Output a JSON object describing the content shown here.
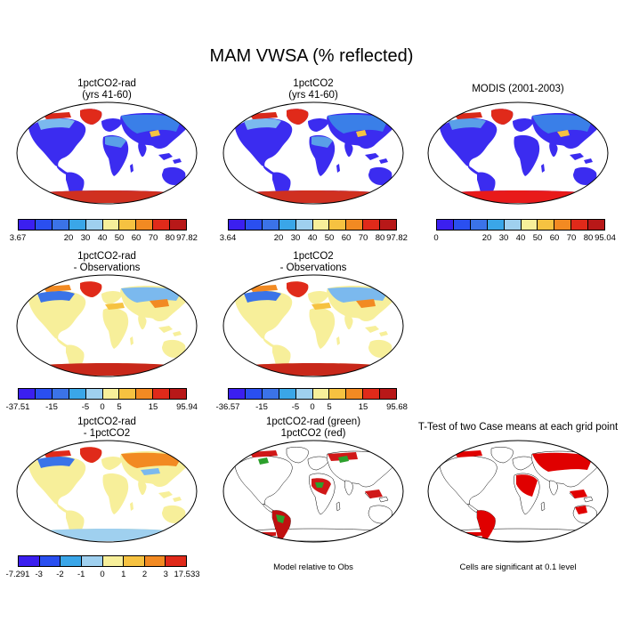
{
  "figure_title": "MAM VWSA (% reflected)",
  "colors": {
    "abs_scale": [
      "#3b1ff0",
      "#2a4ff0",
      "#3b73e8",
      "#3aa6e8",
      "#9fd0ef",
      "#f7ef9a",
      "#f6c241",
      "#f28a22",
      "#e02a1a",
      "#b81818"
    ],
    "diff_scale": [
      "#3b1ff0",
      "#2a4ff0",
      "#3b73e8",
      "#3aa6e8",
      "#9fd0ef",
      "#f7ef9a",
      "#f6c241",
      "#f28a22",
      "#e02a1a",
      "#b81818"
    ],
    "signif_green": "#2ca02c",
    "signif_red": "#e00000"
  },
  "panels": {
    "p1": {
      "title_line1": "1pctCO2-rad",
      "title_line2": "(yrs 41-60)",
      "ticks": [
        "3.67",
        "20",
        "30",
        "40",
        "50",
        "60",
        "70",
        "80",
        "97.82"
      ]
    },
    "p2": {
      "title_line1": "1pctCO2",
      "title_line2": "(yrs 41-60)",
      "ticks": [
        "3.64",
        "20",
        "30",
        "40",
        "50",
        "60",
        "70",
        "80",
        "97.82"
      ]
    },
    "p3": {
      "title_line1": "MODIS (2001-2003)",
      "title_line2": "",
      "ticks": [
        "0",
        "20",
        "30",
        "40",
        "50",
        "60",
        "70",
        "80",
        "95.04"
      ]
    },
    "p4": {
      "title_line1": "1pctCO2-rad",
      "title_line2": "- Observations",
      "ticks": [
        "-37.51",
        "-15",
        "-5",
        "0",
        "5",
        "15",
        "95.94"
      ]
    },
    "p5": {
      "title_line1": "1pctCO2",
      "title_line2": "- Observations",
      "ticks": [
        "-36.57",
        "-15",
        "-5",
        "0",
        "5",
        "15",
        "95.68"
      ]
    },
    "p6": {
      "title_line1": "1pctCO2-rad",
      "title_line2": "- 1pctCO2",
      "ticks": [
        "-7.291",
        "-3",
        "-2",
        "-1",
        "0",
        "1",
        "2",
        "3",
        "17.533"
      ]
    },
    "p7": {
      "title_line1": "1pctCO2-rad (green)",
      "title_line2": "1pctCO2 (red)",
      "note": "Model relative to Obs"
    },
    "p8": {
      "title_line1": "T-Test of two Case means at each grid point",
      "title_line2": "",
      "note": "Cells are significant at 0.1 level"
    }
  }
}
